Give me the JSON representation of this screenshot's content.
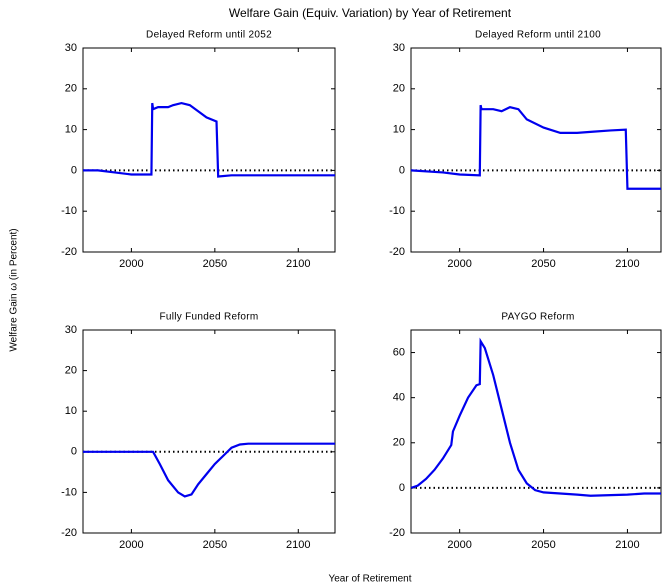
{
  "title": "Welfare Gain (Equiv. Variation) by Year of Retirement",
  "xlabel": "Year of Retirement",
  "ylabel": "Welfare Gain ω (in Percent)",
  "chart_data": [
    {
      "type": "line",
      "title": "Delayed Reform until 2052",
      "xlim": [
        1971,
        2122
      ],
      "ylim": [
        -20,
        30
      ],
      "xticks": [
        2000,
        2050,
        2100
      ],
      "yticks": [
        -20,
        -10,
        0,
        10,
        20,
        30
      ],
      "hline": 0,
      "series": [
        {
          "color": "#0000ee",
          "x": [
            1971,
            1980,
            1990,
            2000,
            2012,
            2012.5,
            2013,
            2016,
            2022,
            2025,
            2030,
            2035,
            2040,
            2045,
            2051,
            2052,
            2060,
            2080,
            2100,
            2122
          ],
          "values": [
            0,
            0,
            -0.5,
            -1,
            -1,
            16.5,
            15,
            15.5,
            15.5,
            16,
            16.5,
            16,
            14.5,
            13,
            12,
            -1.5,
            -1.2,
            -1.2,
            -1.2,
            -1.2
          ]
        }
      ]
    },
    {
      "type": "line",
      "title": "Delayed Reform until 2100",
      "xlim": [
        1971,
        2120
      ],
      "ylim": [
        -20,
        30
      ],
      "xticks": [
        2000,
        2050,
        2100
      ],
      "yticks": [
        -20,
        -10,
        0,
        10,
        20,
        30
      ],
      "hline": 0,
      "series": [
        {
          "color": "#0000ee",
          "x": [
            1971,
            1990,
            2000,
            2012,
            2012.5,
            2013,
            2020,
            2025,
            2030,
            2035,
            2040,
            2050,
            2060,
            2070,
            2080,
            2090,
            2099,
            2100,
            2120
          ],
          "values": [
            0,
            -0.5,
            -1,
            -1.2,
            16,
            15,
            15,
            14.5,
            15.5,
            15,
            12.5,
            10.5,
            9.2,
            9.2,
            9.5,
            9.8,
            10,
            -4.5,
            -4.5
          ]
        }
      ]
    },
    {
      "type": "line",
      "title": "Fully Funded Reform",
      "xlim": [
        1971,
        2122
      ],
      "ylim": [
        -20,
        30
      ],
      "xticks": [
        2000,
        2050,
        2100
      ],
      "yticks": [
        -20,
        -10,
        0,
        10,
        20,
        30
      ],
      "hline": 0,
      "series": [
        {
          "color": "#0000ee",
          "x": [
            1971,
            2013,
            2017,
            2022,
            2028,
            2032,
            2036,
            2040,
            2045,
            2050,
            2055,
            2060,
            2065,
            2070,
            2080,
            2100,
            2122
          ],
          "values": [
            0,
            0,
            -3,
            -7,
            -10,
            -11,
            -10.5,
            -8,
            -5.5,
            -3,
            -1,
            1,
            1.8,
            2,
            2,
            2,
            2
          ]
        }
      ]
    },
    {
      "type": "line",
      "title": "PAYGO Reform",
      "xlim": [
        1971,
        2120
      ],
      "ylim": [
        -20,
        70
      ],
      "xticks": [
        2000,
        2050,
        2100
      ],
      "yticks": [
        -20,
        0,
        20,
        40,
        60
      ],
      "hline": 0,
      "series": [
        {
          "color": "#0000ee",
          "x": [
            1971,
            1975,
            1980,
            1985,
            1990,
            1995,
            1996,
            2000,
            2005,
            2010,
            2012,
            2012.5,
            2015,
            2020,
            2025,
            2030,
            2035,
            2040,
            2045,
            2050,
            2060,
            2070,
            2078,
            2090,
            2100,
            2110,
            2120
          ],
          "values": [
            0,
            1,
            4,
            8,
            13,
            19,
            25,
            32,
            40,
            45.5,
            46,
            65,
            62,
            50,
            35,
            20,
            8,
            2,
            -1,
            -2,
            -2.5,
            -3,
            -3.5,
            -3.2,
            -3,
            -2.5,
            -2.5
          ]
        }
      ]
    }
  ]
}
